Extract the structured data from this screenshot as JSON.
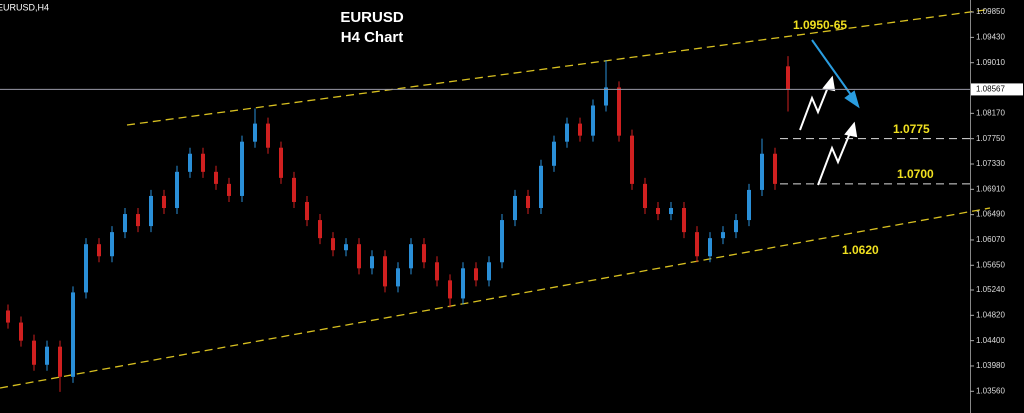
{
  "chart_data": {
    "type": "candlestick",
    "symbol_label": "EURUSD,H4",
    "title": "EURUSD",
    "subtitle": "H4 Chart",
    "up_color": "#2a8fd8",
    "down_color": "#d02020",
    "ylim": [
      1.032,
      1.1005
    ],
    "yticks": [
      {
        "value": 1.0985,
        "label": "1.09850"
      },
      {
        "value": 1.0943,
        "label": "1.09430"
      },
      {
        "value": 1.0901,
        "label": "1.09010"
      },
      {
        "value": 1.0817,
        "label": "1.08170"
      },
      {
        "value": 1.0775,
        "label": "1.07750"
      },
      {
        "value": 1.0733,
        "label": "1.07330"
      },
      {
        "value": 1.0691,
        "label": "1.06910"
      },
      {
        "value": 1.0649,
        "label": "1.06490"
      },
      {
        "value": 1.0607,
        "label": "1.06070"
      },
      {
        "value": 1.0565,
        "label": "1.05650"
      },
      {
        "value": 1.0524,
        "label": "1.05240"
      },
      {
        "value": 1.0482,
        "label": "1.04820"
      },
      {
        "value": 1.044,
        "label": "1.04400"
      },
      {
        "value": 1.0398,
        "label": "1.03980"
      },
      {
        "value": 1.0356,
        "label": "1.03560"
      }
    ],
    "current_price": 1.08567,
    "levels": [
      {
        "value": 1.0775,
        "label": "1.0775"
      },
      {
        "value": 1.07,
        "label": "1.0700"
      }
    ],
    "annotations": [
      "1.0950-65",
      "1.0620"
    ],
    "open": [
      1.049,
      1.047,
      1.044,
      1.04,
      1.043,
      1.038,
      1.052,
      1.06,
      1.058,
      1.062,
      1.065,
      1.063,
      1.068,
      1.066,
      1.072,
      1.075,
      1.072,
      1.07,
      1.068,
      1.077,
      1.08,
      1.076,
      1.071,
      1.067,
      1.064,
      1.061,
      1.059,
      1.06,
      1.056,
      1.058,
      1.053,
      1.056,
      1.06,
      1.057,
      1.054,
      1.051,
      1.056,
      1.054,
      1.057,
      1.064,
      1.068,
      1.066,
      1.073,
      1.077,
      1.08,
      1.078,
      1.083,
      1.086,
      1.078,
      1.07,
      1.066,
      1.065,
      1.066,
      1.062,
      1.058,
      1.061,
      1.062,
      1.064,
      1.069,
      1.075,
      1.0895
    ],
    "high": [
      1.05,
      1.048,
      1.045,
      1.044,
      1.044,
      1.053,
      1.061,
      1.061,
      1.063,
      1.066,
      1.066,
      1.069,
      1.069,
      1.073,
      1.076,
      1.076,
      1.073,
      1.071,
      1.078,
      1.0825,
      1.081,
      1.077,
      1.072,
      1.068,
      1.065,
      1.062,
      1.061,
      1.061,
      1.059,
      1.059,
      1.057,
      1.061,
      1.061,
      1.058,
      1.055,
      1.057,
      1.057,
      1.058,
      1.065,
      1.069,
      1.069,
      1.074,
      1.078,
      1.081,
      1.081,
      1.084,
      1.0905,
      1.087,
      1.079,
      1.071,
      1.067,
      1.067,
      1.067,
      1.063,
      1.062,
      1.063,
      1.065,
      1.07,
      1.0775,
      1.076,
      1.0912
    ],
    "low": [
      1.046,
      1.043,
      1.039,
      1.039,
      1.0355,
      1.037,
      1.051,
      1.057,
      1.057,
      1.061,
      1.062,
      1.062,
      1.065,
      1.065,
      1.071,
      1.071,
      1.069,
      1.067,
      1.067,
      1.076,
      1.075,
      1.07,
      1.066,
      1.063,
      1.06,
      1.058,
      1.058,
      1.055,
      1.055,
      1.052,
      1.052,
      1.055,
      1.056,
      1.053,
      1.0495,
      1.05,
      1.053,
      1.053,
      1.056,
      1.063,
      1.065,
      1.065,
      1.072,
      1.076,
      1.077,
      1.077,
      1.082,
      1.077,
      1.069,
      1.065,
      1.064,
      1.064,
      1.061,
      1.057,
      1.057,
      1.06,
      1.061,
      1.063,
      1.068,
      1.069,
      1.082
    ],
    "close": [
      1.047,
      1.044,
      1.04,
      1.043,
      1.038,
      1.052,
      1.06,
      1.058,
      1.062,
      1.065,
      1.063,
      1.068,
      1.066,
      1.072,
      1.075,
      1.072,
      1.07,
      1.068,
      1.077,
      1.08,
      1.076,
      1.071,
      1.067,
      1.064,
      1.061,
      1.059,
      1.06,
      1.056,
      1.058,
      1.053,
      1.056,
      1.06,
      1.057,
      1.054,
      1.051,
      1.056,
      1.054,
      1.057,
      1.064,
      1.068,
      1.066,
      1.073,
      1.077,
      1.08,
      1.078,
      1.083,
      1.086,
      1.078,
      1.07,
      1.066,
      1.065,
      1.066,
      1.062,
      1.058,
      1.061,
      1.062,
      1.064,
      1.069,
      1.075,
      1.07,
      1.0857
    ]
  }
}
